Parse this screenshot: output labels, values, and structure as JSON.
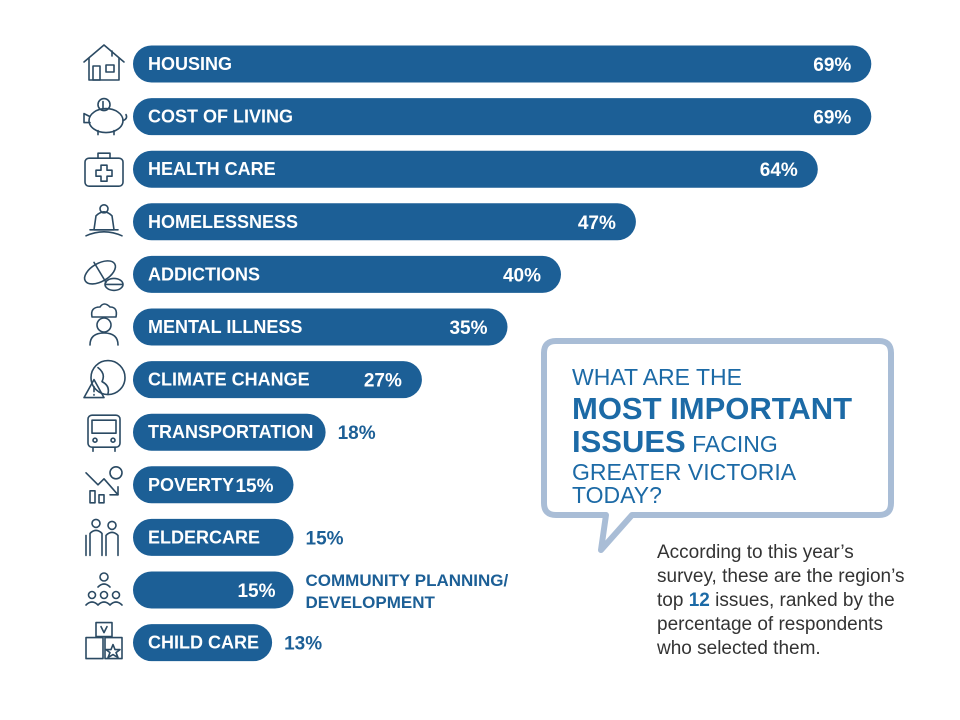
{
  "chart_data": {
    "type": "bar",
    "orientation": "horizontal",
    "categories": [
      "HOUSING",
      "COST OF LIVING",
      "HEALTH CARE",
      "HOMELESSNESS",
      "ADDICTIONS",
      "MENTAL ILLNESS",
      "CLIMATE CHANGE",
      "TRANSPORTATION",
      "POVERTY",
      "ELDERCARE",
      "COMMUNITY PLANNING/ DEVELOPMENT",
      "CHILD CARE"
    ],
    "values": [
      69,
      69,
      64,
      47,
      40,
      35,
      27,
      18,
      15,
      15,
      15,
      13
    ],
    "value_labels": [
      "69%",
      "69%",
      "64%",
      "47%",
      "40%",
      "35%",
      "27%",
      "18%",
      "15%",
      "15%",
      "15%",
      "13%"
    ],
    "icons": [
      "house-icon",
      "piggy-bank-icon",
      "first-aid-kit-icon",
      "homeless-person-icon",
      "pills-icon",
      "mental-health-icon",
      "climate-globe-icon",
      "bus-icon",
      "poverty-chart-icon",
      "elderly-couple-icon",
      "community-network-icon",
      "toy-blocks-icon"
    ],
    "bar_color": "#1c5f96"
  },
  "callout": {
    "line1": "WHAT ARE THE",
    "line2": "MOST IMPORTANT",
    "line3_bold": "ISSUES",
    "line3_rest": " FACING",
    "line4": "GREATER VICTORIA TODAY?",
    "border_color": "#a9bdd6",
    "text_color": "#1c6aa6"
  },
  "description": {
    "before": "According to this year’s survey, these are the region’s top ",
    "number": "12",
    "after": " issues, ranked  by the percentage of respondents who selected them."
  }
}
